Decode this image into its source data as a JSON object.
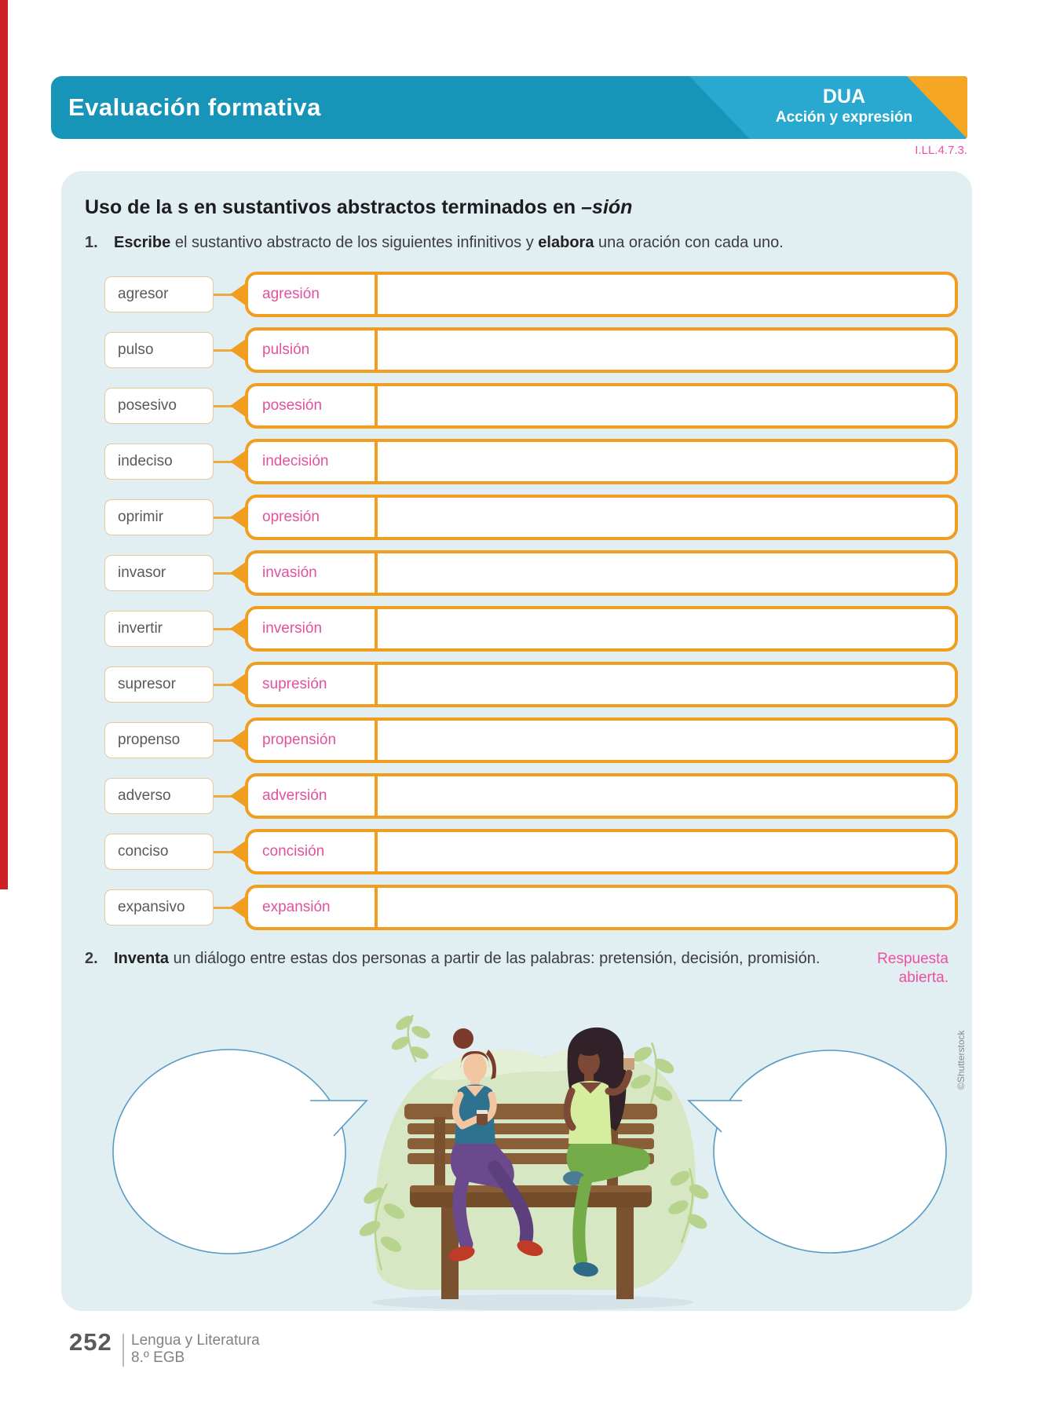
{
  "header": {
    "title": "Evaluación formativa",
    "tag": "DUA",
    "tag_sub": "Acción y expresión",
    "code": "I.LL.4.7.3."
  },
  "worksheet": {
    "title_main": "Uso de la s en sustantivos abstractos terminados en ",
    "title_suffix": "–sión",
    "exercise1": {
      "number": "1.",
      "verb1": "Escribe",
      "seg1": " el sustantivo abstracto de los siguientes infinitivos y ",
      "verb2": "elabora",
      "seg2": " una oración con cada uno.",
      "rows": [
        {
          "word": "agresor",
          "answer": "agresión"
        },
        {
          "word": "pulso",
          "answer": "pulsión"
        },
        {
          "word": "posesivo",
          "answer": "posesión"
        },
        {
          "word": "indeciso",
          "answer": "indecisión"
        },
        {
          "word": "oprimir",
          "answer": "opresión"
        },
        {
          "word": "invasor",
          "answer": "invasión"
        },
        {
          "word": "invertir",
          "answer": "inversión"
        },
        {
          "word": "supresor",
          "answer": "supresión"
        },
        {
          "word": "propenso",
          "answer": "propensión"
        },
        {
          "word": "adverso",
          "answer": "adversión"
        },
        {
          "word": "conciso",
          "answer": "concisión"
        },
        {
          "word": "expansivo",
          "answer": "expansión"
        }
      ]
    },
    "exercise2": {
      "number": "2.",
      "verb1": "Inventa",
      "seg1": " un diálogo entre estas dos personas a partir de las palabras: pretensión, decisión, promisión.",
      "note": "Respuesta abierta."
    }
  },
  "credit": "©Shutterstock",
  "footer": {
    "page_number": "252",
    "line1": "Lengua y Literatura",
    "line2": "8.º EGB"
  },
  "colors": {
    "brand_teal": "#1795B8",
    "brand_cyan": "#29A9CF",
    "brand_orange": "#F5A623",
    "box_orange": "#F09D20",
    "connector_orange": "#EFA93F",
    "tan_border": "#E5C89B",
    "pink": "#E2519E",
    "code_pink": "#ED4FA2",
    "panel_bg": "#E1EEF2",
    "word_gray": "#58595B",
    "footer_gray": "#808285",
    "red_strip": "#CE2027",
    "bubble_stroke": "#569AC6"
  }
}
